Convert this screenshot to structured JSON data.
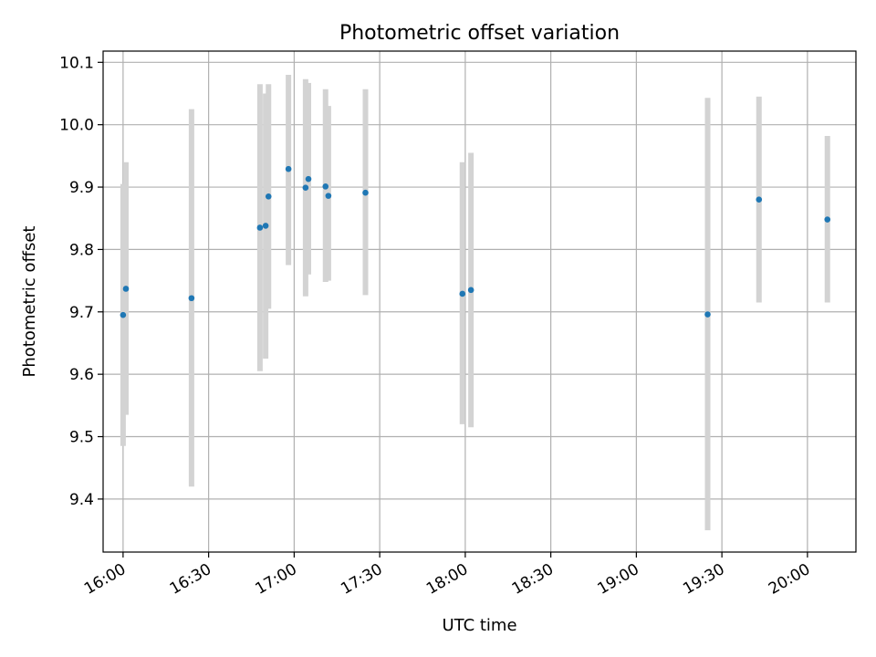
{
  "chart_data": {
    "type": "scatter",
    "title": "Photometric offset variation",
    "xlabel": "UTC time",
    "ylabel": "Photometric offset",
    "x_tick_labels": [
      "16:00",
      "16:30",
      "17:00",
      "17:30",
      "18:00",
      "18:30",
      "19:00",
      "19:30",
      "20:00"
    ],
    "y_tick_labels": [
      "9.4",
      "9.5",
      "9.6",
      "9.7",
      "9.8",
      "9.9",
      "10.0",
      "10.1"
    ],
    "xlim": [
      "15:53",
      "20:17"
    ],
    "ylim": [
      9.315,
      10.118
    ],
    "grid": true,
    "colors": {
      "points": "#1f77b4",
      "error_bars": "#d3d3d3",
      "grid": "#b0b0b0"
    },
    "points": [
      {
        "x": "16:00",
        "y": 9.695,
        "yerr": [
          9.485,
          9.905
        ]
      },
      {
        "x": "16:01",
        "y": 9.737,
        "yerr": [
          9.535,
          9.94
        ]
      },
      {
        "x": "16:24",
        "y": 9.722,
        "yerr": [
          9.42,
          10.025
        ]
      },
      {
        "x": "16:48",
        "y": 9.835,
        "yerr": [
          9.605,
          10.065
        ]
      },
      {
        "x": "16:50",
        "y": 9.838,
        "yerr": [
          9.625,
          10.05
        ]
      },
      {
        "x": "16:51",
        "y": 9.885,
        "yerr": [
          9.705,
          10.065
        ]
      },
      {
        "x": "16:58",
        "y": 9.929,
        "yerr": [
          9.775,
          10.08
        ]
      },
      {
        "x": "17:04",
        "y": 9.899,
        "yerr": [
          9.725,
          10.073
        ]
      },
      {
        "x": "17:05",
        "y": 9.913,
        "yerr": [
          9.76,
          10.067
        ]
      },
      {
        "x": "17:11",
        "y": 9.901,
        "yerr": [
          9.748,
          10.057
        ]
      },
      {
        "x": "17:12",
        "y": 9.886,
        "yerr": [
          9.75,
          10.03
        ]
      },
      {
        "x": "17:25",
        "y": 9.891,
        "yerr": [
          9.727,
          10.057
        ]
      },
      {
        "x": "17:59",
        "y": 9.729,
        "yerr": [
          9.52,
          9.94
        ]
      },
      {
        "x": "18:02",
        "y": 9.735,
        "yerr": [
          9.515,
          9.955
        ]
      },
      {
        "x": "19:25",
        "y": 9.696,
        "yerr": [
          9.35,
          10.043
        ]
      },
      {
        "x": "19:43",
        "y": 9.88,
        "yerr": [
          9.715,
          10.045
        ]
      },
      {
        "x": "20:07",
        "y": 9.848,
        "yerr": [
          9.715,
          9.982
        ]
      }
    ]
  }
}
